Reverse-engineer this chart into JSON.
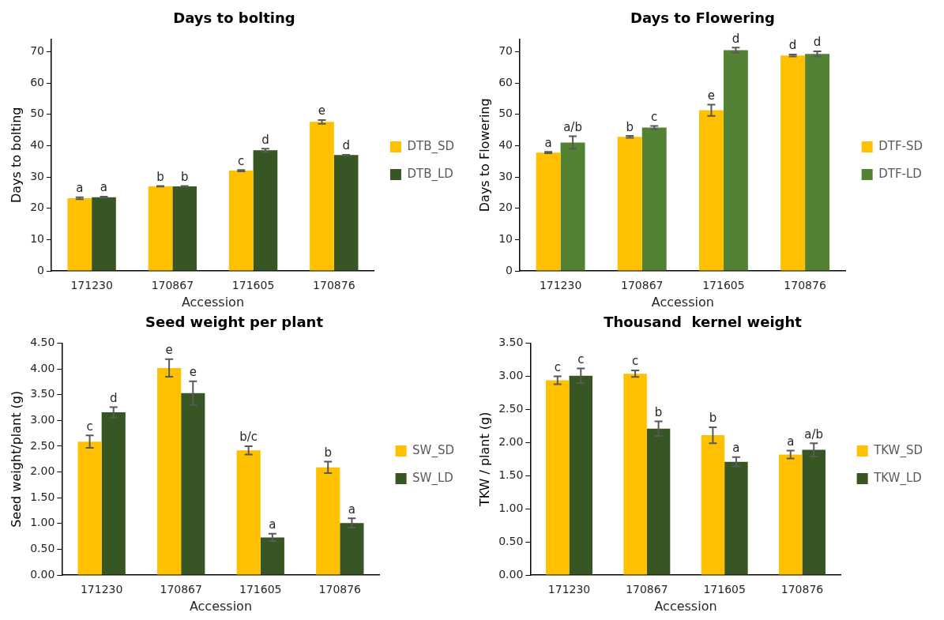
{
  "chart_data": [
    {
      "type": "bar",
      "title": "Days to bolting",
      "xlabel": "Accession",
      "ylabel": "Days to bolting",
      "categories": [
        "171230",
        "170867",
        "171605",
        "170876"
      ],
      "ylim": [
        0,
        74
      ],
      "yticks": [
        0,
        10,
        20,
        30,
        40,
        50,
        60,
        70
      ],
      "grid": false,
      "legend": "right",
      "series": [
        {
          "name": "DTB_SD",
          "color": "#ffc000",
          "values": [
            23.2,
            27,
            32,
            47.6
          ],
          "errors": [
            0.3,
            0.1,
            0.2,
            0.6
          ],
          "value_labels": [
            "a",
            "b",
            "c",
            "e"
          ]
        },
        {
          "name": "DTB_LD",
          "color": "#375623",
          "values": [
            23.5,
            27,
            38.5,
            37
          ],
          "errors": [
            0.2,
            0.1,
            0.5,
            0.1
          ],
          "value_labels": [
            "a",
            "b",
            "d",
            "d"
          ]
        }
      ]
    },
    {
      "type": "bar",
      "title": "Days to Flowering",
      "xlabel": "Accession",
      "ylabel": "Days to Flowering",
      "categories": [
        "171230",
        "170867",
        "171605",
        "170876"
      ],
      "ylim": [
        0,
        74
      ],
      "yticks": [
        0,
        10,
        20,
        30,
        40,
        50,
        60,
        70
      ],
      "grid": false,
      "legend": "right",
      "series": [
        {
          "name": "DTF-SD",
          "color": "#ffc000",
          "values": [
            37.8,
            42.8,
            51.3,
            68.8
          ],
          "errors": [
            0.2,
            0.3,
            1.8,
            0.3
          ],
          "value_labels": [
            "a",
            "b",
            "e",
            "d"
          ]
        },
        {
          "name": "DTF-LD",
          "color": "#548235",
          "values": [
            41,
            45.8,
            70.5,
            69.3
          ],
          "errors": [
            2,
            0.5,
            0.8,
            0.8
          ],
          "value_labels": [
            "a/b",
            "c",
            "d",
            "d"
          ]
        }
      ]
    },
    {
      "type": "bar",
      "title": "Seed weight per plant",
      "xlabel": "Accession",
      "ylabel": "Seed weight/plant (g)",
      "categories": [
        "171230",
        "170867",
        "171605",
        "170876"
      ],
      "ylim": [
        0,
        4.5
      ],
      "yticks": [
        {
          "value": 0,
          "label": "0.00"
        },
        {
          "value": 0.5,
          "label": "0.50"
        },
        {
          "value": 1,
          "label": "1.00"
        },
        {
          "value": 1.5,
          "label": "1.50"
        },
        {
          "value": 2,
          "label": "2.00"
        },
        {
          "value": 2.5,
          "label": "2.50"
        },
        {
          "value": 3,
          "label": "3.00"
        },
        {
          "value": 3.5,
          "label": "3.50"
        },
        {
          "value": 4,
          "label": "4.00"
        },
        {
          "value": 4.5,
          "label": "4.50"
        }
      ],
      "grid": false,
      "legend": "right",
      "series": [
        {
          "name": "SW_SD",
          "color": "#ffc000",
          "values": [
            2.59,
            4.02,
            2.42,
            2.09
          ],
          "errors": [
            0.12,
            0.17,
            0.08,
            0.11
          ],
          "value_labels": [
            "c",
            "e",
            "b/c",
            "b"
          ]
        },
        {
          "name": "SW_LD",
          "color": "#375623",
          "values": [
            3.16,
            3.53,
            0.73,
            1.01
          ],
          "errors": [
            0.1,
            0.23,
            0.07,
            0.09
          ],
          "value_labels": [
            "d",
            "e",
            "a",
            "a"
          ]
        }
      ]
    },
    {
      "type": "bar",
      "title": "Thousand  kernel weight",
      "xlabel": "Accession",
      "ylabel": "TKW / plant (g)",
      "categories": [
        "171230",
        "170867",
        "171605",
        "170876"
      ],
      "ylim": [
        0,
        3.5
      ],
      "yticks": [
        {
          "value": 0,
          "label": "0.00"
        },
        {
          "value": 0.5,
          "label": "0.50"
        },
        {
          "value": 1,
          "label": "1.00"
        },
        {
          "value": 1.5,
          "label": "1.50"
        },
        {
          "value": 2,
          "label": "2.00"
        },
        {
          "value": 2.5,
          "label": "2.50"
        },
        {
          "value": 3,
          "label": "3.00"
        },
        {
          "value": 3.5,
          "label": "3.50"
        }
      ],
      "grid": false,
      "legend": "right",
      "series": [
        {
          "name": "TKW_SD",
          "color": "#ffc000",
          "values": [
            2.94,
            3.04,
            2.11,
            1.82
          ],
          "errors": [
            0.06,
            0.05,
            0.12,
            0.06
          ],
          "value_labels": [
            "c",
            "c",
            "b",
            "a"
          ]
        },
        {
          "name": "TKW_LD",
          "color": "#375623",
          "values": [
            3.01,
            2.21,
            1.71,
            1.89
          ],
          "errors": [
            0.11,
            0.11,
            0.07,
            0.1
          ],
          "value_labels": [
            "c",
            "b",
            "a",
            "a/b"
          ]
        }
      ]
    }
  ]
}
